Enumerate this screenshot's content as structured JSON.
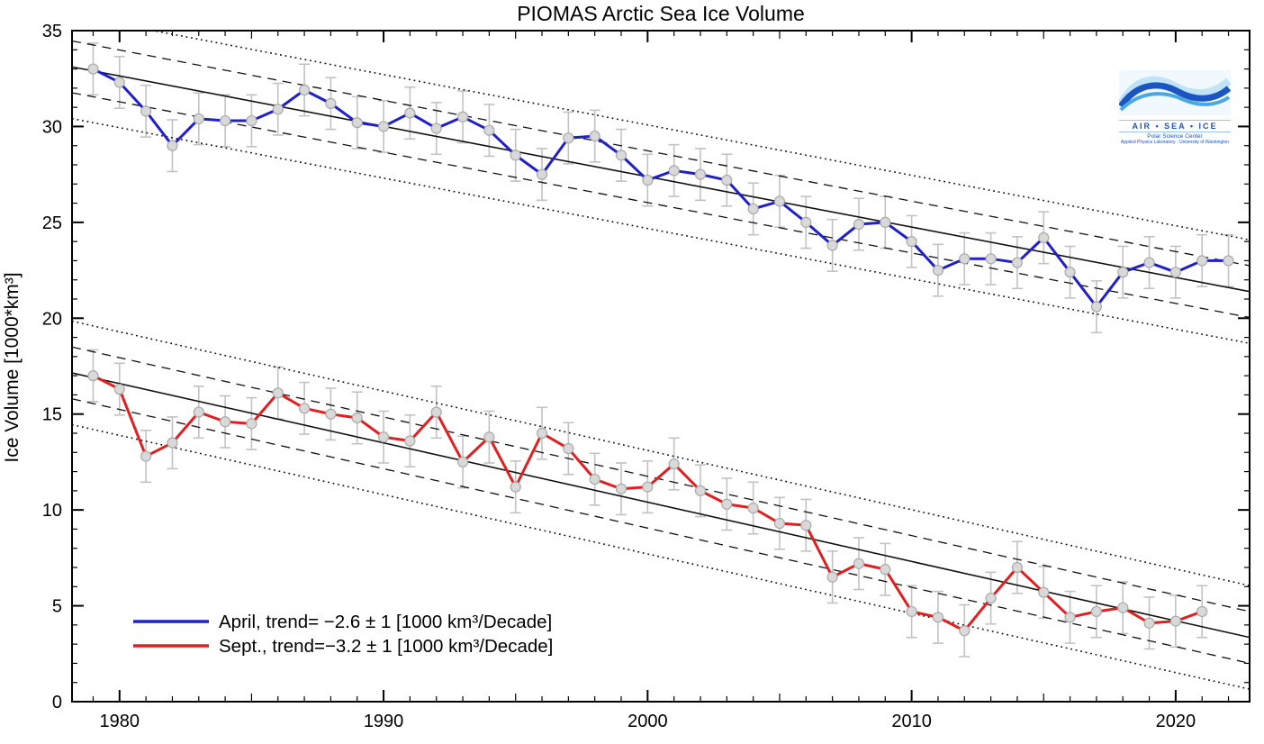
{
  "title": "PIOMAS Arctic Sea Ice Volume",
  "ylabel": "Ice Volume [1000*km³]",
  "legend": {
    "items": [
      {
        "label": "April, trend= −2.6 ± 1 [1000 km³/Decade]",
        "color": "#2020c8"
      },
      {
        "label": "Sept., trend=−3.2 ± 1 [1000 km³/Decade]",
        "color": "#e02020"
      }
    ]
  },
  "logo": {
    "line1": "AIR • SEA • ICE",
    "line2": "Polar Science Center",
    "line3": "Applied Physics Laboratory · University of Washington"
  },
  "colors": {
    "april": "#2020c8",
    "september": "#e02020",
    "error_bar": "#c2c2c2",
    "marker_fill": "#d9d9d9",
    "marker_edge": "#a9a9a9",
    "trend": "#111111"
  },
  "chart_data": {
    "type": "line",
    "title": "PIOMAS Arctic Sea Ice Volume",
    "xlabel": "",
    "ylabel": "Ice Volume [1000*km³]",
    "xlim": [
      1978.2,
      2022.8
    ],
    "ylim": [
      0,
      35
    ],
    "xticks": [
      1980,
      1990,
      2000,
      2010,
      2020
    ],
    "yticks": [
      0,
      5,
      10,
      15,
      20,
      25,
      30,
      35
    ],
    "grid": false,
    "legend_position": "lower-left",
    "error_bar_half_height": 1.35,
    "series": [
      {
        "name": "April",
        "color": "#2020c8",
        "x": [
          1979,
          1980,
          1981,
          1982,
          1983,
          1984,
          1985,
          1986,
          1987,
          1988,
          1989,
          1990,
          1991,
          1992,
          1993,
          1994,
          1995,
          1996,
          1997,
          1998,
          1999,
          2000,
          2001,
          2002,
          2003,
          2004,
          2005,
          2006,
          2007,
          2008,
          2009,
          2010,
          2011,
          2012,
          2013,
          2014,
          2015,
          2016,
          2017,
          2018,
          2019,
          2020,
          2021,
          2022
        ],
        "values": [
          33.0,
          32.3,
          30.8,
          29.0,
          30.4,
          30.3,
          30.3,
          30.9,
          31.9,
          31.2,
          30.2,
          30.0,
          30.7,
          29.9,
          30.5,
          29.8,
          28.5,
          27.5,
          29.4,
          29.5,
          28.5,
          27.2,
          27.7,
          27.5,
          27.2,
          25.7,
          26.1,
          25.0,
          23.8,
          24.9,
          25.0,
          24.0,
          22.5,
          23.1,
          23.1,
          22.9,
          24.2,
          22.4,
          20.6,
          22.4,
          22.9,
          22.4,
          23.0,
          23.0
        ]
      },
      {
        "name": "September",
        "color": "#e02020",
        "x": [
          1979,
          1980,
          1981,
          1982,
          1983,
          1984,
          1985,
          1986,
          1987,
          1988,
          1989,
          1990,
          1991,
          1992,
          1993,
          1994,
          1995,
          1996,
          1997,
          1998,
          1999,
          2000,
          2001,
          2002,
          2003,
          2004,
          2005,
          2006,
          2007,
          2008,
          2009,
          2010,
          2011,
          2012,
          2013,
          2014,
          2015,
          2016,
          2017,
          2018,
          2019,
          2020,
          2021
        ],
        "values": [
          17.0,
          16.3,
          12.8,
          13.5,
          15.1,
          14.6,
          14.5,
          16.1,
          15.3,
          15.0,
          14.8,
          13.8,
          13.6,
          15.1,
          12.5,
          13.8,
          11.2,
          14.0,
          13.2,
          11.6,
          11.1,
          11.2,
          12.4,
          11.0,
          10.3,
          10.1,
          9.3,
          9.2,
          6.5,
          7.2,
          6.9,
          4.7,
          4.4,
          3.7,
          5.4,
          7.0,
          5.7,
          4.4,
          4.7,
          4.9,
          4.1,
          4.2,
          4.7
        ]
      }
    ],
    "trend_lines": [
      {
        "series": "April",
        "label": "April, trend= −2.6 ± 1 [1000 km³/Decade]",
        "x0": 1979,
        "y0": 32.9,
        "x1": 2022,
        "y1": 21.6,
        "dashed_band": 1.35,
        "dotted_band": 2.7
      },
      {
        "series": "September",
        "label": "Sept., trend=−3.2 ± 1 [1000 km³/Decade]",
        "x0": 1979,
        "y0": 16.9,
        "x1": 2022,
        "y1": 3.6,
        "dashed_band": 1.35,
        "dotted_band": 2.7
      }
    ]
  }
}
